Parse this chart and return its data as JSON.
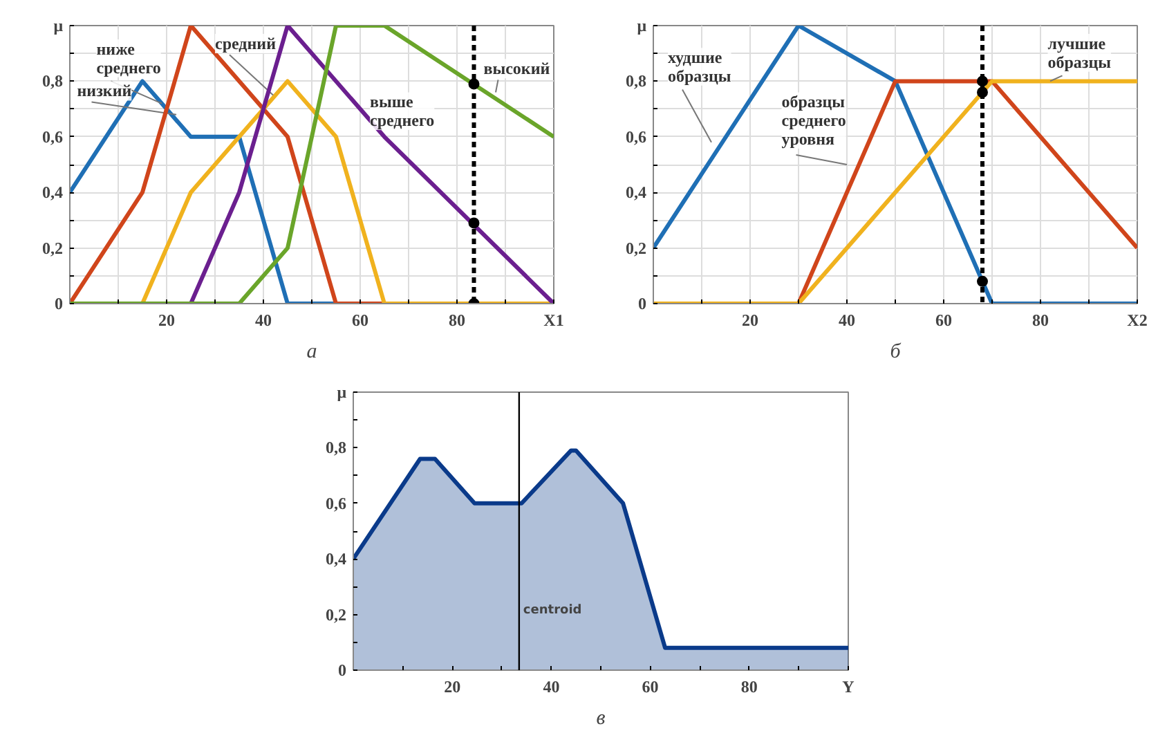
{
  "chart_data": [
    {
      "type": "line",
      "xlabel": "а",
      "xlim": [
        0,
        100
      ],
      "ylim": [
        0,
        1
      ],
      "xticks": [
        {
          "value": 10,
          "label": null
        },
        20,
        {
          "value": 30,
          "label": null
        },
        40,
        {
          "value": 50,
          "label": null
        },
        60,
        {
          "value": 70,
          "label": null
        },
        80,
        {
          "value": 90,
          "label": null
        },
        {
          "value": 100,
          "label": "X1"
        }
      ],
      "yticks": [
        0,
        {
          "value": 0.1,
          "label": null
        },
        {
          "value": 0.2,
          "label": "0,2"
        },
        {
          "value": 0.3,
          "label": null
        },
        {
          "value": 0.4,
          "label": "0,4"
        },
        {
          "value": 0.5,
          "label": null
        },
        {
          "value": 0.6,
          "label": "0,6"
        },
        {
          "value": 0.7,
          "label": null
        },
        {
          "value": 0.8,
          "label": "0,8"
        },
        {
          "value": 0.9,
          "label": null
        },
        {
          "value": 1,
          "label": "μ"
        }
      ],
      "grid": true,
      "series": [
        {
          "name": "низкий",
          "color": "#1f6fb5",
          "x": [
            0,
            15,
            25,
            35,
            45,
            100
          ],
          "values": [
            0.4,
            0.8,
            0.6,
            0.6,
            0,
            0
          ]
        },
        {
          "name": "ниже\nсреднего",
          "color": "#d0451b",
          "x": [
            0,
            15,
            25,
            45,
            55,
            100
          ],
          "values": [
            0,
            0.4,
            1.0,
            0.6,
            0,
            0
          ]
        },
        {
          "name": "средний",
          "color": "#f0b21e",
          "x": [
            0,
            15,
            25,
            35,
            45,
            55,
            65,
            100
          ],
          "values": [
            0,
            0,
            0.4,
            0.6,
            0.8,
            0.6,
            0,
            0
          ]
        },
        {
          "name": "выше\nсреднего",
          "color": "#6b1f8f",
          "x": [
            0,
            25,
            35,
            45,
            65,
            100
          ],
          "values": [
            0,
            0,
            0.4,
            1.0,
            0.6,
            0
          ]
        },
        {
          "name": "высокий",
          "color": "#6aa52a",
          "x": [
            0,
            35,
            45,
            55,
            65,
            100
          ],
          "values": [
            0,
            0,
            0.2,
            1.0,
            1.0,
            0.6
          ]
        },
        {
          "type": "scatter",
          "color": "#000000",
          "x": [
            83.5,
            83.5,
            83.5
          ],
          "values": [
            0.79,
            0.29,
            0
          ]
        }
      ],
      "ref_lines": [
        {
          "axis": "x",
          "value": 83.5,
          "color": "#000000",
          "line_style": "dashed"
        }
      ]
    },
    {
      "type": "line",
      "xlabel": "б",
      "xlim": [
        0,
        100
      ],
      "ylim": [
        0,
        1
      ],
      "xticks": [
        {
          "value": 10,
          "label": null
        },
        20,
        {
          "value": 30,
          "label": null
        },
        40,
        {
          "value": 50,
          "label": null
        },
        60,
        {
          "value": 70,
          "label": null
        },
        80,
        {
          "value": 90,
          "label": null
        },
        {
          "value": 100,
          "label": "X2"
        }
      ],
      "yticks": [
        0,
        {
          "value": 0.1,
          "label": null
        },
        {
          "value": 0.2,
          "label": "0,2"
        },
        {
          "value": 0.3,
          "label": null
        },
        {
          "value": 0.4,
          "label": "0,4"
        },
        {
          "value": 0.5,
          "label": null
        },
        {
          "value": 0.6,
          "label": "0,6"
        },
        {
          "value": 0.7,
          "label": null
        },
        {
          "value": 0.8,
          "label": "0,8"
        },
        {
          "value": 0.9,
          "label": null
        },
        {
          "value": 1,
          "label": "μ"
        }
      ],
      "grid": true,
      "series": [
        {
          "name": "худшие\nобразцы",
          "color": "#1f6fb5",
          "x": [
            0,
            30,
            50,
            70,
            100
          ],
          "values": [
            0.2,
            1.0,
            0.8,
            0,
            0
          ]
        },
        {
          "name": "образцы\nсреднего\nуровня",
          "color": "#d0451b",
          "x": [
            0,
            30,
            50,
            70,
            100
          ],
          "values": [
            0,
            0,
            0.8,
            0.8,
            0.2
          ]
        },
        {
          "name": "лучшие\nобразцы",
          "color": "#f0b21e",
          "x": [
            0,
            30,
            70,
            100
          ],
          "values": [
            0,
            0,
            0.8,
            0.8
          ]
        },
        {
          "type": "scatter",
          "color": "#000000",
          "x": [
            68,
            68,
            68
          ],
          "values": [
            0.8,
            0.76,
            0.08
          ]
        }
      ],
      "ref_lines": [
        {
          "axis": "x",
          "value": 68,
          "color": "#000000",
          "line_style": "dashed"
        }
      ]
    },
    {
      "type": "area",
      "xlabel": "в",
      "xlim": [
        0,
        100
      ],
      "ylim": [
        0,
        1
      ],
      "xticks": [
        {
          "value": 10,
          "label": null
        },
        20,
        {
          "value": 30,
          "label": null
        },
        40,
        {
          "value": 50,
          "label": null
        },
        60,
        {
          "value": 70,
          "label": null
        },
        80,
        {
          "value": 90,
          "label": null
        },
        {
          "value": 100,
          "label": "Y"
        }
      ],
      "yticks": [
        0,
        {
          "value": 0.1,
          "label": null
        },
        {
          "value": 0.2,
          "label": "0,2"
        },
        {
          "value": 0.3,
          "label": null
        },
        {
          "value": 0.4,
          "label": "0,4"
        },
        {
          "value": 0.5,
          "label": null
        },
        {
          "value": 0.6,
          "label": "0,6"
        },
        {
          "value": 0.7,
          "label": null
        },
        {
          "value": 0.8,
          "label": "0,8"
        },
        {
          "value": 0.9,
          "label": null
        },
        {
          "value": 1,
          "label": "μ"
        }
      ],
      "grid": false,
      "series": [
        {
          "color": "#0a3a8a",
          "x": [
            0,
            13.5,
            16.5,
            24.5,
            34,
            44,
            45,
            54.5,
            63,
            100
          ],
          "values": [
            0.4,
            0.76,
            0.76,
            0.6,
            0.6,
            0.79,
            0.79,
            0.6,
            0.08,
            0.08
          ]
        }
      ],
      "ref_lines": [
        {
          "axis": "x",
          "value": 33.5,
          "color": "#000000",
          "label": "centroid"
        }
      ]
    }
  ]
}
